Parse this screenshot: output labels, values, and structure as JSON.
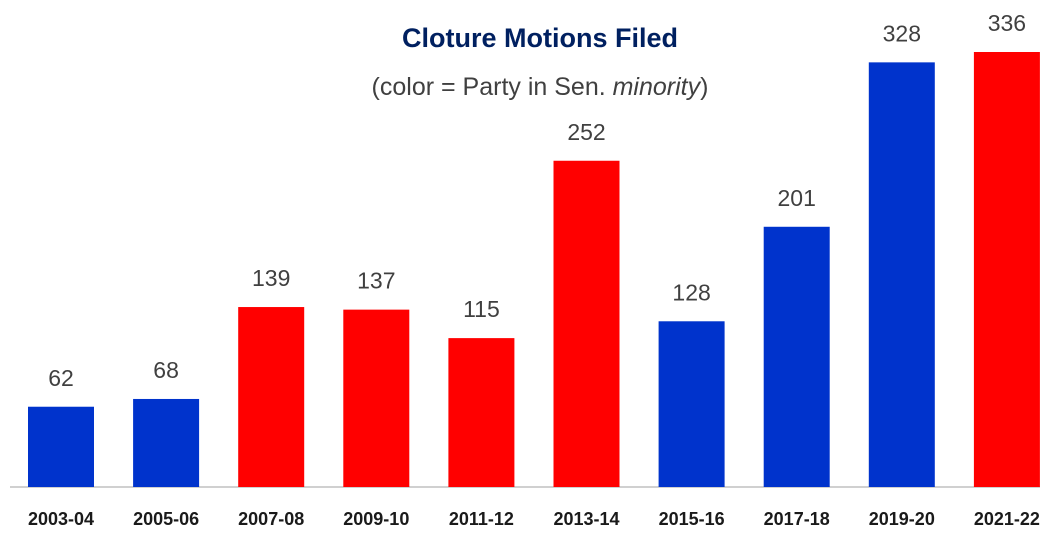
{
  "chart_data": {
    "type": "bar",
    "title": "Cloture Motions Filed",
    "subtitle": [
      "(color = Party in Sen. ",
      "minority",
      ")"
    ],
    "categories": [
      "2003-04",
      "2005-06",
      "2007-08",
      "2009-10",
      "2011-12",
      "2013-14",
      "2015-16",
      "2017-18",
      "2019-20",
      "2021-22"
    ],
    "values": [
      62,
      68,
      139,
      137,
      115,
      252,
      128,
      201,
      328,
      336
    ],
    "colors": [
      "#0033cc",
      "#0033cc",
      "#ff0000",
      "#ff0000",
      "#ff0000",
      "#ff0000",
      "#0033cc",
      "#0033cc",
      "#0033cc",
      "#ff0000"
    ]
  }
}
